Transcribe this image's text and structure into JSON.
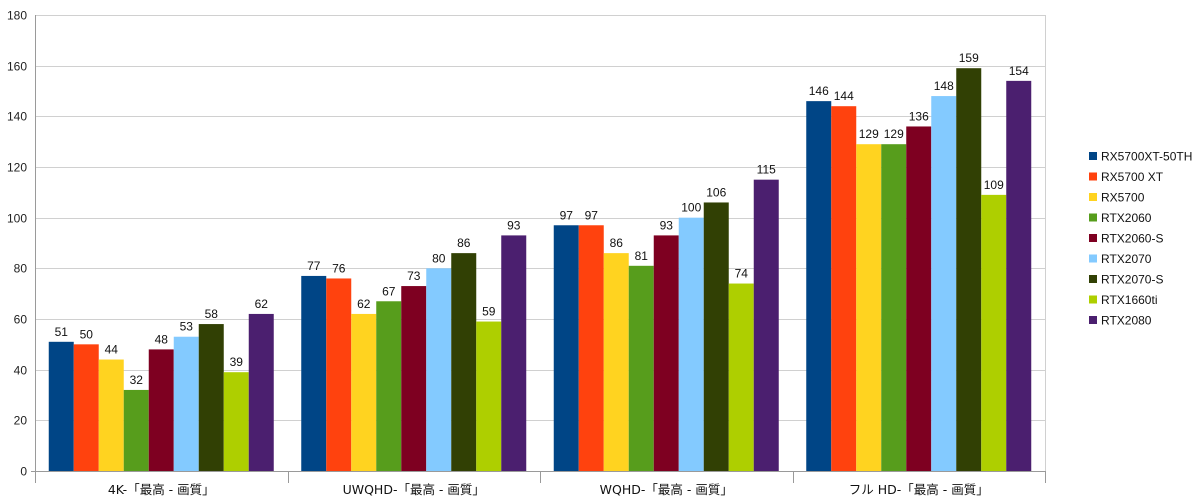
{
  "chart_data": {
    "type": "bar",
    "title": "",
    "xlabel": "",
    "ylabel": "",
    "ylim": [
      0,
      180
    ],
    "yticks": [
      0,
      20,
      40,
      60,
      80,
      100,
      120,
      140,
      160,
      180
    ],
    "grid": true,
    "legend_position": "right",
    "categories": [
      "4K-「最高 - 画質」",
      "UWQHD-「最高 - 画質」",
      "WQHD-「最高 - 画質」",
      "フル HD-「最高 - 画質」"
    ],
    "series": [
      {
        "name": "RX5700XT-50TH",
        "color": "#004586",
        "values": [
          51,
          77,
          97,
          146
        ]
      },
      {
        "name": "RX5700 XT",
        "color": "#ff420e",
        "values": [
          50,
          76,
          97,
          144
        ]
      },
      {
        "name": "RX5700",
        "color": "#ffd320",
        "values": [
          44,
          62,
          86,
          129
        ]
      },
      {
        "name": "RTX2060",
        "color": "#579d1c",
        "values": [
          32,
          67,
          81,
          129
        ]
      },
      {
        "name": "RTX2060-S",
        "color": "#7e0021",
        "values": [
          48,
          73,
          93,
          136
        ]
      },
      {
        "name": "RTX2070",
        "color": "#83caff",
        "values": [
          53,
          80,
          100,
          148
        ]
      },
      {
        "name": "RTX2070-S",
        "color": "#314004",
        "values": [
          58,
          86,
          106,
          159
        ]
      },
      {
        "name": "RTX1660ti",
        "color": "#aecf00",
        "values": [
          39,
          59,
          74,
          109
        ]
      },
      {
        "name": "RTX2080",
        "color": "#4b1f6f",
        "values": [
          62,
          93,
          115,
          154
        ]
      }
    ]
  }
}
